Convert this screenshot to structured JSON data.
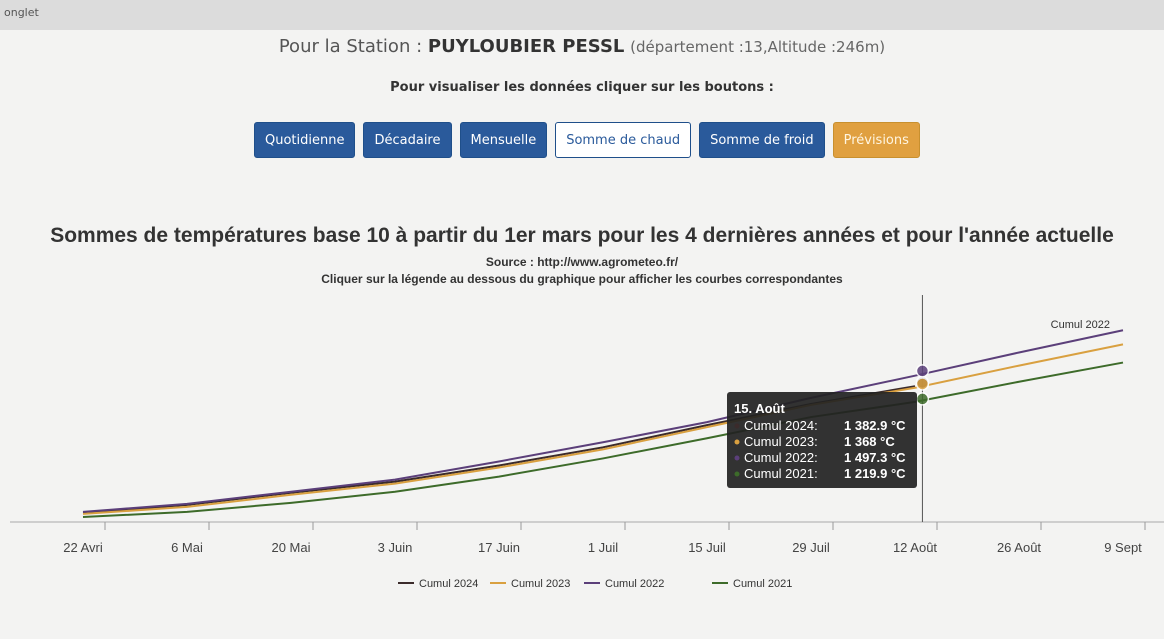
{
  "tab": "onglet",
  "header": {
    "station_prefix": "Pour la Station :",
    "station_name": "PUYLOUBIER PESSL",
    "station_info": "(département :13,Altitude :246m)",
    "instruction": "Pour visualiser les données cliquer sur les boutons :"
  },
  "buttons": [
    "Quotidienne",
    "Décadaire",
    "Mensuelle",
    "Somme de chaud",
    "Somme de froid",
    "Prévisions"
  ],
  "chart_data": {
    "type": "line",
    "title": "Sommes de températures base 10 à partir du 1er mars pour les 4 dernières années et pour l'année actuelle",
    "subtitle": "Source : http://www.agrometeo.fr/",
    "note": "Cliquer sur la légende au dessous du graphique pour afficher les courbes correspondantes",
    "categories": [
      "22 Avri",
      "6 Mai",
      "20 Mai",
      "3 Juin",
      "17 Juin",
      "1 Juil",
      "15 Juil",
      "29 Juil",
      "12 Août",
      "26 Août",
      "9 Sept"
    ],
    "ylim": [
      0,
      2200
    ],
    "series": [
      {
        "name": "Cumul 2024",
        "color": "#3b2b2b",
        "values": [
          90,
          170,
          290,
          400,
          560,
          740,
          960,
          1170,
          1345,
          null,
          null
        ]
      },
      {
        "name": "Cumul 2023",
        "color": "#d9a040",
        "values": [
          80,
          150,
          270,
          380,
          540,
          720,
          940,
          1160,
          1330,
          1550,
          1760
        ]
      },
      {
        "name": "Cumul 2022",
        "color": "#5b3f7a",
        "values": [
          100,
          180,
          300,
          420,
          600,
          790,
          990,
          1230,
          1450,
          1680,
          1900
        ]
      },
      {
        "name": "Cumul 2021",
        "color": "#3d6b2a",
        "values": [
          50,
          100,
          190,
          300,
          450,
          630,
          830,
          1040,
          1190,
          1390,
          1580
        ]
      }
    ],
    "end_label": "Cumul 2022",
    "tooltip": {
      "title": "15. Août",
      "items": [
        {
          "name": "Cumul 2024:",
          "value": 1382.9,
          "value_label": "1 382.9 °C",
          "color": "#3b2b2b"
        },
        {
          "name": "Cumul 2023:",
          "value": 1368,
          "value_label": "1 368 °C",
          "color": "#d9a040"
        },
        {
          "name": "Cumul 2022:",
          "value": 1497.3,
          "value_label": "1 497.3 °C",
          "color": "#5b3f7a"
        },
        {
          "name": "Cumul 2021:",
          "value": 1219.9,
          "value_label": "1 219.9 °C",
          "color": "#3d6b2a"
        }
      ]
    }
  }
}
